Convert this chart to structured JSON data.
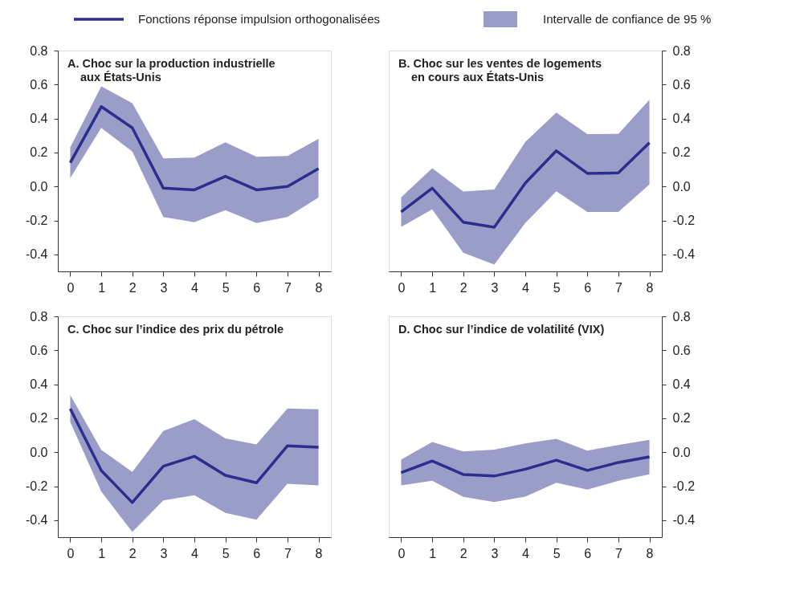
{
  "chart_data": [
    {
      "type": "line",
      "title": "A. Choc sur la production industrielle\naux États-Unis",
      "legend": "top",
      "annotations": [
        "Intervalle de confiance de 95 %"
      ],
      "x": [
        0,
        1,
        2,
        3,
        4,
        5,
        6,
        7,
        8
      ],
      "xlim": [
        -0.4,
        8.4
      ],
      "xticks": [
        0,
        1,
        2,
        3,
        4,
        5,
        6,
        7,
        8
      ],
      "ylim": [
        -0.5,
        0.8
      ],
      "yticks": [
        {
          "value": -0.4,
          "label": "-0.4"
        },
        {
          "value": -0.2,
          "label": "-0.2"
        },
        {
          "value": 0,
          "label": "0.0"
        },
        {
          "value": 0.2,
          "label": "0.2"
        },
        {
          "value": 0.4,
          "label": "0.4"
        },
        {
          "value": 0.6,
          "label": "0.6"
        },
        {
          "value": 0.8,
          "label": "0.8"
        }
      ],
      "grid": false,
      "series": [
        {
          "name": "Fonctions réponse impulsion orthogonalisées",
          "color": "#2b2e8c",
          "values": [
            0.14,
            0.47,
            0.345,
            -0.01,
            -0.02,
            0.06,
            -0.02,
            0.0,
            0.105
          ],
          "upper": [
            0.23,
            0.59,
            0.49,
            0.165,
            0.17,
            0.26,
            0.175,
            0.18,
            0.28
          ],
          "lower": [
            0.05,
            0.345,
            0.205,
            -0.18,
            -0.21,
            -0.14,
            -0.215,
            -0.18,
            -0.065
          ]
        }
      ]
    },
    {
      "type": "line",
      "title": "B. Choc sur les ventes de logements\nen cours aux États-Unis",
      "x": [
        0,
        1,
        2,
        3,
        4,
        5,
        6,
        7,
        8
      ],
      "xlim": [
        -0.4,
        8.4
      ],
      "xticks": [
        0,
        1,
        2,
        3,
        4,
        5,
        6,
        7,
        8
      ],
      "ylim": [
        -0.5,
        0.8
      ],
      "yticks": [
        {
          "value": -0.4,
          "label": "-0.4"
        },
        {
          "value": -0.2,
          "label": "-0.2"
        },
        {
          "value": 0,
          "label": "0.0"
        },
        {
          "value": 0.2,
          "label": "0.2"
        },
        {
          "value": 0.4,
          "label": "0.4"
        },
        {
          "value": 0.6,
          "label": "0.6"
        },
        {
          "value": 0.8,
          "label": "0.8"
        }
      ],
      "grid": false,
      "series": [
        {
          "color": "#2b2e8c",
          "values": [
            -0.15,
            -0.01,
            -0.21,
            -0.24,
            0.02,
            0.21,
            0.077,
            0.08,
            0.258
          ],
          "upper": [
            -0.064,
            0.108,
            -0.03,
            -0.018,
            0.262,
            0.435,
            0.308,
            0.31,
            0.51
          ],
          "lower": [
            -0.238,
            -0.135,
            -0.39,
            -0.46,
            -0.215,
            -0.029,
            -0.15,
            -0.15,
            0.012
          ]
        }
      ]
    },
    {
      "type": "line",
      "title": "C. Choc sur l’indice des prix du pétrole",
      "x": [
        0,
        1,
        2,
        3,
        4,
        5,
        6,
        7,
        8
      ],
      "xlim": [
        -0.4,
        8.4
      ],
      "xticks": [
        0,
        1,
        2,
        3,
        4,
        5,
        6,
        7,
        8
      ],
      "ylim": [
        -0.5,
        0.8
      ],
      "yticks": [
        {
          "value": -0.4,
          "label": "-0.4"
        },
        {
          "value": -0.2,
          "label": "-0.2"
        },
        {
          "value": 0,
          "label": "0.0"
        },
        {
          "value": 0.2,
          "label": "0.2"
        },
        {
          "value": 0.4,
          "label": "0.4"
        },
        {
          "value": 0.6,
          "label": "0.6"
        },
        {
          "value": 0.8,
          "label": "0.8"
        }
      ],
      "grid": false,
      "series": [
        {
          "color": "#2b2e8c",
          "values": [
            0.256,
            -0.108,
            -0.296,
            -0.082,
            -0.024,
            -0.136,
            -0.18,
            0.038,
            0.029
          ],
          "upper": [
            0.337,
            0.014,
            -0.116,
            0.125,
            0.195,
            0.082,
            0.046,
            0.258,
            0.253
          ],
          "lower": [
            0.177,
            -0.232,
            -0.469,
            -0.284,
            -0.253,
            -0.357,
            -0.397,
            -0.186,
            -0.195
          ]
        }
      ]
    },
    {
      "type": "line",
      "title": "D. Choc sur l’indice de volatilité (VIX)",
      "x": [
        0,
        1,
        2,
        3,
        4,
        5,
        6,
        7,
        8
      ],
      "xlim": [
        -0.4,
        8.4
      ],
      "xticks": [
        0,
        1,
        2,
        3,
        4,
        5,
        6,
        7,
        8
      ],
      "ylim": [
        -0.5,
        0.8
      ],
      "yticks": [
        {
          "value": -0.4,
          "label": "-0.4"
        },
        {
          "value": -0.2,
          "label": "-0.2"
        },
        {
          "value": 0,
          "label": "0.0"
        },
        {
          "value": 0.2,
          "label": "0.2"
        },
        {
          "value": 0.4,
          "label": "0.4"
        },
        {
          "value": 0.6,
          "label": "0.6"
        },
        {
          "value": 0.8,
          "label": "0.8"
        }
      ],
      "grid": false,
      "series": [
        {
          "color": "#2b2e8c",
          "values": [
            -0.12,
            -0.052,
            -0.131,
            -0.14,
            -0.1,
            -0.047,
            -0.107,
            -0.06,
            -0.027
          ],
          "upper": [
            -0.043,
            0.06,
            0.005,
            0.015,
            0.052,
            0.079,
            0.009,
            0.043,
            0.073
          ],
          "lower": [
            -0.195,
            -0.168,
            -0.263,
            -0.293,
            -0.261,
            -0.18,
            -0.22,
            -0.168,
            -0.13
          ]
        }
      ]
    }
  ]
}
